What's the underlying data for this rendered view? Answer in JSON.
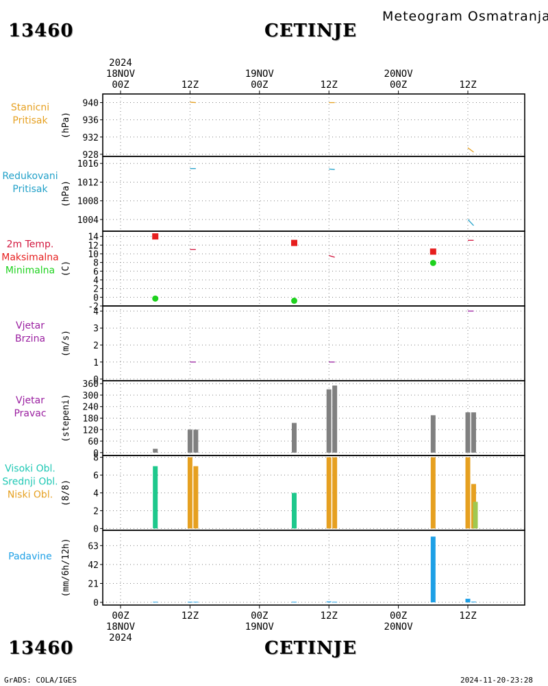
{
  "header": {
    "station_id": "13460",
    "station_name": "CETINJE",
    "meteogram_title": "Meteogram Osmatranja"
  },
  "footer": {
    "station_id": "13460",
    "station_name": "CETINJE",
    "credits": "GrADS: COLA/IGES",
    "timestamp": "2024-11-20-23:28"
  },
  "time_axis": {
    "hours": [
      0,
      72
    ],
    "top": [
      {
        "hour": 0,
        "lines": [
          "2024",
          "18NOV",
          "00Z"
        ]
      },
      {
        "hour": 12,
        "lines": [
          "12Z"
        ]
      },
      {
        "hour": 24,
        "lines": [
          "19NOV",
          "00Z"
        ]
      },
      {
        "hour": 36,
        "lines": [
          "12Z"
        ]
      },
      {
        "hour": 48,
        "lines": [
          "20NOV",
          "00Z"
        ]
      },
      {
        "hour": 60,
        "lines": [
          "12Z"
        ]
      }
    ],
    "bottom": [
      {
        "hour": 0,
        "lines": [
          "00Z",
          "18NOV",
          "2024"
        ]
      },
      {
        "hour": 12,
        "lines": [
          "12Z"
        ]
      },
      {
        "hour": 24,
        "lines": [
          "00Z",
          "19NOV"
        ]
      },
      {
        "hour": 36,
        "lines": [
          "12Z"
        ]
      },
      {
        "hour": 48,
        "lines": [
          "00Z",
          "20NOV"
        ]
      },
      {
        "hour": 60,
        "lines": [
          "12Z"
        ]
      }
    ]
  },
  "colors": {
    "station_pressure": "#e6a020",
    "reduced_pressure": "#20a0c8",
    "temp_max": "#e61e1e",
    "temp_min": "#1ed21e",
    "temp_label": "#d2143c",
    "wind": "#9a1ea0",
    "wind_dir_bar": "#808080",
    "cloud_high": "#1ec88c",
    "cloud_mid": "#e6a020",
    "cloud_low": "#a0c850",
    "precip": "#1ea0e6"
  },
  "chart_data": [
    {
      "id": "station_pressure",
      "type": "line",
      "labels": [
        {
          "text": "Stanicni",
          "color": "#e6a020"
        },
        {
          "text": "Pritisak",
          "color": "#e6a020"
        }
      ],
      "ylabel": "(hPa)",
      "yticks": [
        928,
        932,
        936,
        940
      ],
      "ylim": [
        927.5,
        942
      ],
      "series": [
        {
          "color": "#e6a020",
          "x": [
            12,
            13
          ],
          "y": [
            940.1,
            940.0
          ]
        },
        {
          "color": "#e6a020",
          "x": [
            36,
            37
          ],
          "y": [
            940.0,
            940.0
          ]
        },
        {
          "color": "#e6a020",
          "x": [
            60,
            61
          ],
          "y": [
            929.5,
            928.5
          ]
        }
      ]
    },
    {
      "id": "reduced_pressure",
      "type": "line",
      "labels": [
        {
          "text": "Redukovani",
          "color": "#20a0c8"
        },
        {
          "text": "Pritisak",
          "color": "#20a0c8"
        }
      ],
      "ylabel": "(hPa)",
      "yticks": [
        1004,
        1008,
        1012,
        1016
      ],
      "ylim": [
        1001.5,
        1017.5
      ],
      "series": [
        {
          "color": "#20a0c8",
          "x": [
            12,
            13
          ],
          "y": [
            1014.9,
            1014.9
          ]
        },
        {
          "color": "#20a0c8",
          "x": [
            36,
            37
          ],
          "y": [
            1014.8,
            1014.7
          ]
        },
        {
          "color": "#20a0c8",
          "x": [
            60,
            61
          ],
          "y": [
            1004.0,
            1002.7
          ]
        }
      ]
    },
    {
      "id": "temperature",
      "type": "scatter",
      "labels": [
        {
          "text": "2m Temp.",
          "color": "#d2143c"
        },
        {
          "text": "Maksimalna",
          "color": "#e61e1e"
        },
        {
          "text": "Minimalna",
          "color": "#1ed21e"
        }
      ],
      "ylabel": "(C)",
      "yticks": [
        -2,
        0,
        2,
        4,
        6,
        8,
        10,
        12,
        14
      ],
      "ylim": [
        -2,
        15.2
      ],
      "max_points": {
        "color": "#e61e1e",
        "x": [
          6,
          30,
          54
        ],
        "y": [
          14.0,
          12.5,
          10.5
        ]
      },
      "min_points": {
        "color": "#1ed21e",
        "x": [
          6,
          30,
          54
        ],
        "y": [
          -0.3,
          -0.8,
          7.9
        ]
      },
      "series": [
        {
          "color": "#d2143c",
          "x": [
            12,
            13
          ],
          "y": [
            11.0,
            11.0
          ]
        },
        {
          "color": "#d2143c",
          "x": [
            36,
            37
          ],
          "y": [
            9.6,
            9.2
          ]
        },
        {
          "color": "#d2143c",
          "x": [
            60,
            61
          ],
          "y": [
            13.1,
            13.1
          ]
        }
      ]
    },
    {
      "id": "wind_speed",
      "type": "line",
      "labels": [
        {
          "text": "Vjetar",
          "color": "#9a1ea0"
        },
        {
          "text": "Brzina",
          "color": "#9a1ea0"
        }
      ],
      "ylabel": "(m/s)",
      "yticks": [
        0,
        1,
        2,
        3,
        4
      ],
      "ylim": [
        -0.1,
        4.3
      ],
      "series": [
        {
          "color": "#9a1ea0",
          "x": [
            12,
            13
          ],
          "y": [
            1.0,
            1.0
          ]
        },
        {
          "color": "#9a1ea0",
          "x": [
            36,
            37
          ],
          "y": [
            1.0,
            1.0
          ]
        },
        {
          "color": "#9a1ea0",
          "x": [
            60,
            61
          ],
          "y": [
            4.0,
            4.0
          ]
        }
      ]
    },
    {
      "id": "wind_direction",
      "type": "bar",
      "labels": [
        {
          "text": "Vjetar",
          "color": "#9a1ea0"
        },
        {
          "text": "Pravac",
          "color": "#9a1ea0"
        }
      ],
      "ylabel": "(stepeni)",
      "yticks": [
        0,
        60,
        120,
        180,
        240,
        300,
        360
      ],
      "ylim": [
        -15,
        375
      ],
      "bars": [
        {
          "x": 6,
          "value": 20,
          "color": "#808080"
        },
        {
          "x": 12,
          "value": 120,
          "color": "#808080"
        },
        {
          "x": 13,
          "value": 120,
          "color": "#808080"
        },
        {
          "x": 30,
          "value": 155,
          "color": "#808080"
        },
        {
          "x": 36,
          "value": 330,
          "color": "#808080"
        },
        {
          "x": 37,
          "value": 350,
          "color": "#808080"
        },
        {
          "x": 54,
          "value": 195,
          "color": "#808080"
        },
        {
          "x": 60,
          "value": 210,
          "color": "#808080"
        },
        {
          "x": 61,
          "value": 210,
          "color": "#808080"
        }
      ]
    },
    {
      "id": "cloud_cover",
      "type": "bar",
      "labels": [
        {
          "text": "Visoki Obl.",
          "color": "#1ec8b4"
        },
        {
          "text": "Srednji Obl.",
          "color": "#1ec8b4"
        },
        {
          "text": "Niski Obl.",
          "color": "#e6a020"
        }
      ],
      "ylabel": "(8/8)",
      "yticks": [
        0,
        2,
        4,
        6,
        8
      ],
      "ylim": [
        -0.2,
        8.2
      ],
      "bars": [
        {
          "x": 6,
          "value": 7,
          "color": "#1ec88c"
        },
        {
          "x": 12,
          "value": 8,
          "color": "#e6a020"
        },
        {
          "x": 13,
          "value": 7,
          "color": "#e6a020"
        },
        {
          "x": 30,
          "value": 4,
          "color": "#1ec88c"
        },
        {
          "x": 36,
          "value": 8,
          "color": "#e6a020"
        },
        {
          "x": 37,
          "value": 8,
          "color": "#e6a020"
        },
        {
          "x": 54,
          "value": 8,
          "color": "#e6a020"
        },
        {
          "x": 60,
          "value": 8,
          "color": "#e6a020"
        },
        {
          "x": 61,
          "value": 5,
          "color": "#e6a020"
        },
        {
          "x": 61.3,
          "value": 3,
          "color": "#a0c850"
        }
      ]
    },
    {
      "id": "precipitation",
      "type": "bar",
      "labels": [
        {
          "text": "Padavine",
          "color": "#1ea0e6"
        }
      ],
      "ylabel": "(mm/6h/12h)",
      "yticks": [
        0,
        21,
        42,
        63
      ],
      "ylim": [
        -3,
        80
      ],
      "bars": [
        {
          "x": 6,
          "value": 0.6,
          "color": "#1ea0e6",
          "width": 1
        },
        {
          "x": 12,
          "value": 0.6,
          "color": "#1ea0e6",
          "width": 1
        },
        {
          "x": 13,
          "value": 0.6,
          "color": "#1ea0e6",
          "width": 1
        },
        {
          "x": 30,
          "value": 0.6,
          "color": "#1ea0e6",
          "width": 1
        },
        {
          "x": 36,
          "value": 1.0,
          "color": "#1ea0e6",
          "width": 1
        },
        {
          "x": 37,
          "value": 0.6,
          "color": "#1ea0e6",
          "width": 1
        },
        {
          "x": 54,
          "value": 73,
          "color": "#1ea0e6",
          "width": 1
        },
        {
          "x": 60,
          "value": 4,
          "color": "#1ea0e6",
          "width": 1
        },
        {
          "x": 61,
          "value": 0.8,
          "color": "#1ea0e6",
          "width": 1
        }
      ]
    }
  ]
}
